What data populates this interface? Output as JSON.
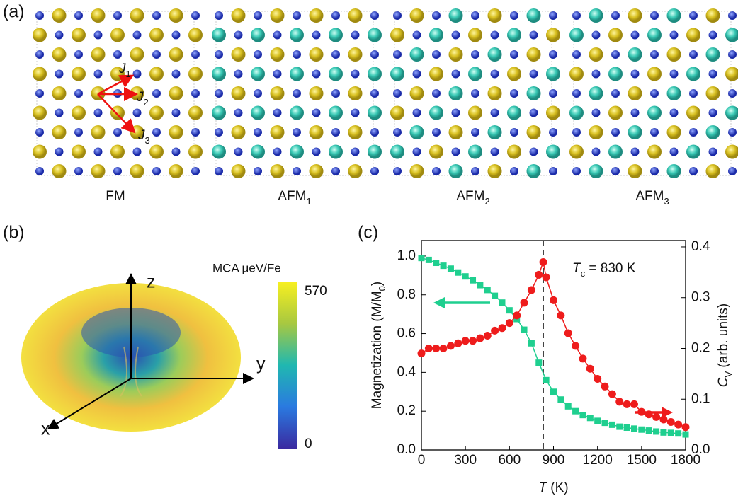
{
  "panel_a": {
    "label": "(a)",
    "states": [
      {
        "name": "FM",
        "sub": null
      },
      {
        "name": "AFM",
        "sub": "1"
      },
      {
        "name": "AFM",
        "sub": "2"
      },
      {
        "name": "AFM",
        "sub": "3"
      }
    ],
    "couplings": [
      {
        "name": "J",
        "sub": "1"
      },
      {
        "name": "J",
        "sub": "2"
      },
      {
        "name": "J",
        "sub": "3"
      }
    ]
  },
  "panel_b": {
    "label": "(b)",
    "colorbar_title": "MCA μeV/Fe",
    "colorbar_max": "570",
    "colorbar_min": "0",
    "axes": [
      "x",
      "y",
      "z"
    ]
  },
  "chart_data": {
    "type": "line",
    "label": "(c)",
    "xlabel": {
      "main": "T",
      "rest": " (K)"
    },
    "ylabel": {
      "main": "Magnetization (M/M",
      "sub": "0",
      "rest": ")"
    },
    "y2label": {
      "main": "C",
      "sub": "V",
      "rest": " (arb. units)"
    },
    "annotation": {
      "main": "T",
      "sub": "c",
      "rest": " = 830 K"
    },
    "tc_line": 830,
    "xlim": [
      0,
      1800
    ],
    "xticks": [
      0,
      300,
      600,
      900,
      1200,
      1500,
      1800
    ],
    "ylim": [
      0,
      1.08
    ],
    "yticks": [
      {
        "value": 0,
        "label": "0.0"
      },
      0.2,
      0.4,
      0.6,
      0.8,
      {
        "value": 1,
        "label": "1.0"
      }
    ],
    "y2lim": [
      0,
      0.4125
    ],
    "y2ticks": [
      {
        "value": 0,
        "label": "0.0"
      },
      0.1,
      0.2,
      0.3,
      0.4
    ],
    "series": [
      {
        "color": "#1fcf8f",
        "marker": "square",
        "x": [
          0,
          50,
          100,
          150,
          200,
          250,
          300,
          350,
          400,
          450,
          500,
          550,
          600,
          650,
          700,
          750,
          800,
          850,
          900,
          950,
          1000,
          1050,
          1100,
          1150,
          1200,
          1250,
          1300,
          1350,
          1400,
          1450,
          1500,
          1550,
          1600,
          1650,
          1700,
          1750,
          1800
        ],
        "values": [
          0.99,
          0.98,
          0.965,
          0.95,
          0.935,
          0.915,
          0.895,
          0.875,
          0.85,
          0.825,
          0.795,
          0.76,
          0.72,
          0.675,
          0.62,
          0.55,
          0.45,
          0.36,
          0.3,
          0.26,
          0.225,
          0.2,
          0.18,
          0.165,
          0.15,
          0.14,
          0.13,
          0.12,
          0.115,
          0.11,
          0.105,
          0.1,
          0.095,
          0.09,
          0.088,
          0.085,
          0.08
        ]
      },
      {
        "color": "#ee1c1c",
        "marker": "circle",
        "axis": "y2",
        "x": [
          0,
          50,
          100,
          150,
          200,
          250,
          300,
          350,
          400,
          450,
          500,
          550,
          600,
          650,
          700,
          750,
          800,
          830,
          850,
          900,
          950,
          1000,
          1050,
          1100,
          1150,
          1200,
          1250,
          1300,
          1350,
          1400,
          1450,
          1500,
          1550,
          1600,
          1650,
          1700,
          1750,
          1800
        ],
        "values": [
          0.19,
          0.2,
          0.2,
          0.2,
          0.205,
          0.21,
          0.215,
          0.215,
          0.22,
          0.225,
          0.235,
          0.24,
          0.25,
          0.265,
          0.29,
          0.315,
          0.345,
          0.37,
          0.34,
          0.295,
          0.265,
          0.23,
          0.205,
          0.18,
          0.16,
          0.14,
          0.125,
          0.11,
          0.095,
          0.09,
          0.09,
          0.075,
          0.07,
          0.065,
          0.06,
          0.055,
          0.05,
          0.045
        ]
      }
    ]
  }
}
